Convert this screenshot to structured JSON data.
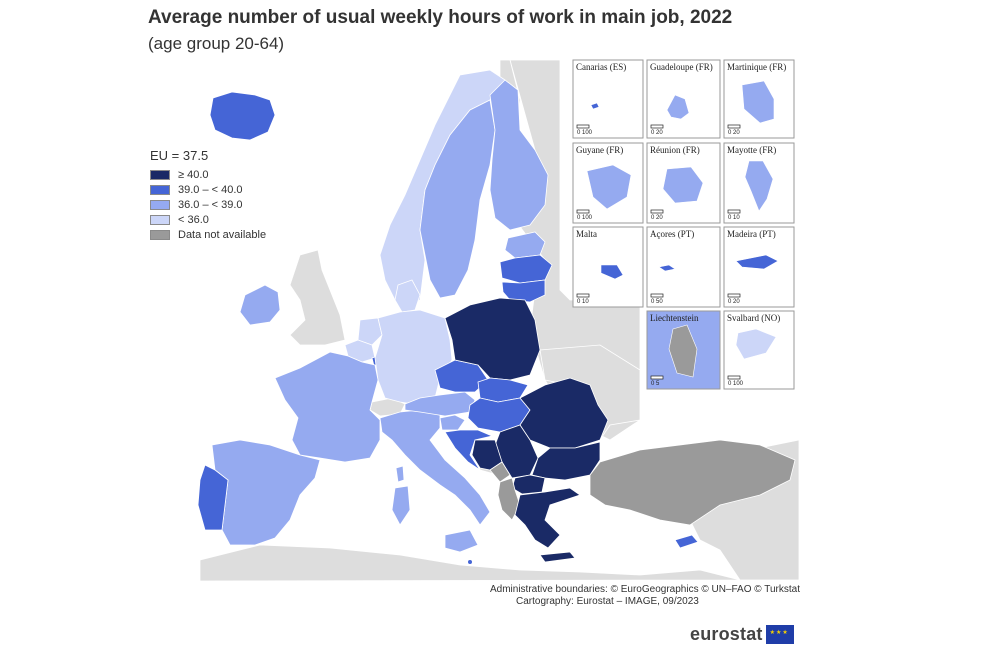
{
  "title": "Average number of usual weekly hours of work in main job, 2022",
  "subtitle": "(age group 20-64)",
  "legend": {
    "heading": "EU = 37.5",
    "items": [
      {
        "label": "≥ 40.0",
        "color": "#1a2a66"
      },
      {
        "label": "39.0 – < 40.0",
        "color": "#4565d6"
      },
      {
        "label": "36.0 – < 39.0",
        "color": "#95aaf0"
      },
      {
        "label": "< 36.0",
        "color": "#ccd6f8"
      },
      {
        "label": "Data not available",
        "color": "#9a9a9a"
      }
    ]
  },
  "colors": {
    "sea": "#ffffff",
    "non_eu_land": "#dddddd",
    "class_1": "#1a2a66",
    "class_2": "#4565d6",
    "class_3": "#95aaf0",
    "class_4": "#ccd6f8",
    "na": "#9a9a9a"
  },
  "insets": [
    {
      "label": "Canarias (ES)",
      "scale": "0    100"
    },
    {
      "label": "Guadeloupe (FR)",
      "scale": "0    20"
    },
    {
      "label": "Martinique (FR)",
      "scale": "0    20"
    },
    {
      "label": "Guyane (FR)",
      "scale": "0    100"
    },
    {
      "label": "Réunion (FR)",
      "scale": "0    20"
    },
    {
      "label": "Mayotte (FR)",
      "scale": "0    10"
    },
    {
      "label": "Malta",
      "scale": "0    10"
    },
    {
      "label": "Açores (PT)",
      "scale": "0    50"
    },
    {
      "label": "Madeira (PT)",
      "scale": "0    20"
    },
    {
      "label": "Liechtenstein",
      "scale": "0    5"
    },
    {
      "label": "Svalbard (NO)",
      "scale": "0    100"
    }
  ],
  "credits": {
    "line1": "Administrative boundaries: © EuroGeographics © UN–FAO © Turkstat",
    "line2": "Cartography: Eurostat – IMAGE, 09/2023"
  },
  "logo": {
    "text": "eurostat"
  }
}
